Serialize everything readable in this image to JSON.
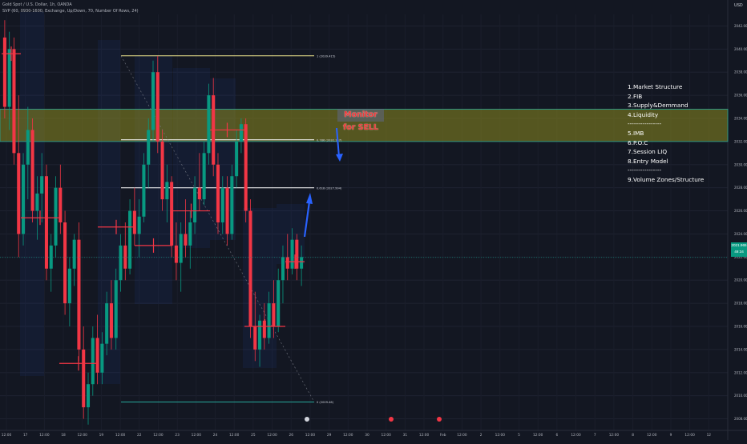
{
  "header": {
    "title": "Gold Spot / U.S. Dollar, 1h, OANDA",
    "indicator": "SVP (60, 0930-1600, Exchange, Up/Down, 70, Number Of Rows, 24)"
  },
  "currency": "USD",
  "price_tag": {
    "price": "2021.965",
    "countdown": "49:34"
  },
  "banner": "Monitor for SELL",
  "notes": [
    "1.Market Structure",
    "2.FIB",
    "3.Supply&Demmand",
    "4.Liquidity",
    "----------------",
    "5.IMB",
    "6.P.O.C",
    "7.Session LIQ",
    "8.Entry Model",
    "----------------",
    "9.Volume Zones/Structure"
  ],
  "colors": {
    "background": "#131722",
    "up": "#089981",
    "down": "#f23645",
    "supply_zone": "#8c8a1f",
    "zone_border": "#26a69a",
    "fib_line": "#ffffff",
    "arrow": "#2962ff",
    "poc": "#f23645"
  },
  "chart_data": {
    "type": "candlestick",
    "y_axis_labels": [
      "2042.000",
      "2040.000",
      "2038.000",
      "2036.000",
      "2034.000",
      "2032.000",
      "2030.000",
      "2028.000",
      "2026.000",
      "2024.000",
      "2022.000",
      "2020.000",
      "2018.000",
      "2016.000",
      "2014.000",
      "2012.000",
      "2010.000",
      "2008.000"
    ],
    "ylim": [
      2007,
      2043
    ],
    "x_axis_labels": [
      "12:00",
      "17",
      "12:00",
      "18",
      "12:00",
      "19",
      "12:00",
      "22",
      "12:00",
      "23",
      "12:00",
      "24",
      "12:00",
      "25",
      "12:00",
      "26",
      "12:00",
      "29",
      "12:00",
      "30",
      "12:00",
      "31",
      "12:00",
      "Feb",
      "12:00",
      "2",
      "12:00",
      "5",
      "12:00",
      "6",
      "12:00",
      "7",
      "12:00",
      "8",
      "12:00",
      "9",
      "12:00",
      "12"
    ],
    "fib_levels": [
      {
        "label": "1 (2039.415)",
        "value": 2039.415
      },
      {
        "label": "0.786 (2032.147)",
        "value": 2032.147
      },
      {
        "label": "0.618 (2027.994)",
        "value": 2027.994
      },
      {
        "label": "0 (2009.46)",
        "value": 2009.46
      }
    ],
    "supply_zone": [
      2032.0,
      2034.8
    ],
    "current_price": 2021.965,
    "ohlc": [
      [
        2041.0,
        2042.5,
        2034.0,
        2035.0
      ],
      [
        2035.0,
        2041.5,
        2033.0,
        2040.0
      ],
      [
        2040.0,
        2041.0,
        2030.0,
        2031.0
      ],
      [
        2031.0,
        2036.0,
        2022.0,
        2024.0
      ],
      [
        2024.0,
        2031.0,
        2023.0,
        2030.0
      ],
      [
        2030.0,
        2035.0,
        2027.0,
        2033.0
      ],
      [
        2033.0,
        2034.0,
        2025.0,
        2026.0
      ],
      [
        2026.0,
        2029.0,
        2023.5,
        2027.5
      ],
      [
        2027.5,
        2031.0,
        2025.0,
        2029.0
      ],
      [
        2029.0,
        2030.0,
        2020.0,
        2021.0
      ],
      [
        2021.0,
        2024.0,
        2019.0,
        2023.0
      ],
      [
        2023.0,
        2029.0,
        2022.0,
        2028.0
      ],
      [
        2028.0,
        2030.0,
        2024.0,
        2025.0
      ],
      [
        2025.0,
        2026.0,
        2017.0,
        2018.0
      ],
      [
        2018.0,
        2022.0,
        2016.0,
        2021.0
      ],
      [
        2021.0,
        2024.0,
        2019.5,
        2023.5
      ],
      [
        2023.5,
        2025.0,
        2013.0,
        2014.0
      ],
      [
        2014.0,
        2016.0,
        2008.0,
        2009.0
      ],
      [
        2009.0,
        2012.0,
        2007.5,
        2011.0
      ],
      [
        2011.0,
        2016.0,
        2010.0,
        2015.0
      ],
      [
        2015.0,
        2017.0,
        2011.0,
        2012.0
      ],
      [
        2012.0,
        2015.5,
        2011.0,
        2014.5
      ],
      [
        2014.5,
        2019.0,
        2013.5,
        2018.0
      ],
      [
        2018.0,
        2020.0,
        2014.0,
        2015.0
      ],
      [
        2015.0,
        2021.0,
        2014.0,
        2020.0
      ],
      [
        2020.0,
        2024.0,
        2019.0,
        2023.0
      ],
      [
        2023.0,
        2025.0,
        2020.0,
        2021.0
      ],
      [
        2021.0,
        2027.0,
        2020.5,
        2026.0
      ],
      [
        2026.0,
        2028.0,
        2023.0,
        2024.0
      ],
      [
        2024.0,
        2027.0,
        2022.0,
        2025.5
      ],
      [
        2025.5,
        2031.0,
        2025.0,
        2030.0
      ],
      [
        2030.0,
        2034.0,
        2028.0,
        2033.0
      ],
      [
        2033.0,
        2039.0,
        2032.0,
        2038.0
      ],
      [
        2038.0,
        2039.4,
        2031.0,
        2032.0
      ],
      [
        2032.0,
        2033.0,
        2026.0,
        2027.0
      ],
      [
        2027.0,
        2030.0,
        2025.0,
        2028.5
      ],
      [
        2028.5,
        2029.0,
        2022.0,
        2023.0
      ],
      [
        2023.0,
        2025.0,
        2020.0,
        2021.5
      ],
      [
        2021.5,
        2025.0,
        2019.0,
        2024.0
      ],
      [
        2024.0,
        2027.0,
        2022.0,
        2023.0
      ],
      [
        2023.0,
        2026.0,
        2021.0,
        2025.0
      ],
      [
        2025.0,
        2029.0,
        2024.0,
        2028.0
      ],
      [
        2028.0,
        2031.0,
        2026.0,
        2027.0
      ],
      [
        2027.0,
        2032.0,
        2026.5,
        2031.0
      ],
      [
        2031.0,
        2037.0,
        2030.0,
        2036.0
      ],
      [
        2036.0,
        2037.5,
        2029.0,
        2030.0
      ],
      [
        2030.0,
        2031.0,
        2024.0,
        2025.0
      ],
      [
        2025.0,
        2029.0,
        2024.0,
        2028.0
      ],
      [
        2028.0,
        2029.0,
        2023.0,
        2024.0
      ],
      [
        2024.0,
        2030.0,
        2023.5,
        2029.0
      ],
      [
        2029.0,
        2033.0,
        2028.0,
        2032.0
      ],
      [
        2032.0,
        2034.0,
        2031.0,
        2033.5
      ],
      [
        2033.5,
        2034.0,
        2025.0,
        2026.0
      ],
      [
        2026.0,
        2027.0,
        2015.0,
        2016.0
      ],
      [
        2016.0,
        2019.0,
        2013.0,
        2014.0
      ],
      [
        2014.0,
        2017.0,
        2012.5,
        2016.5
      ],
      [
        2016.5,
        2018.0,
        2014.0,
        2015.0
      ],
      [
        2015.0,
        2019.0,
        2014.5,
        2018.0
      ],
      [
        2018.0,
        2020.0,
        2015.0,
        2016.0
      ],
      [
        2016.0,
        2021.0,
        2015.5,
        2020.0
      ],
      [
        2020.0,
        2023.0,
        2018.0,
        2022.0
      ],
      [
        2022.0,
        2024.0,
        2020.0,
        2021.0
      ],
      [
        2021.0,
        2024.5,
        2020.5,
        2023.5
      ],
      [
        2023.5,
        2024.0,
        2020.0,
        2021.0
      ],
      [
        2021.0,
        2023.0,
        2019.5,
        2022.0
      ]
    ]
  }
}
